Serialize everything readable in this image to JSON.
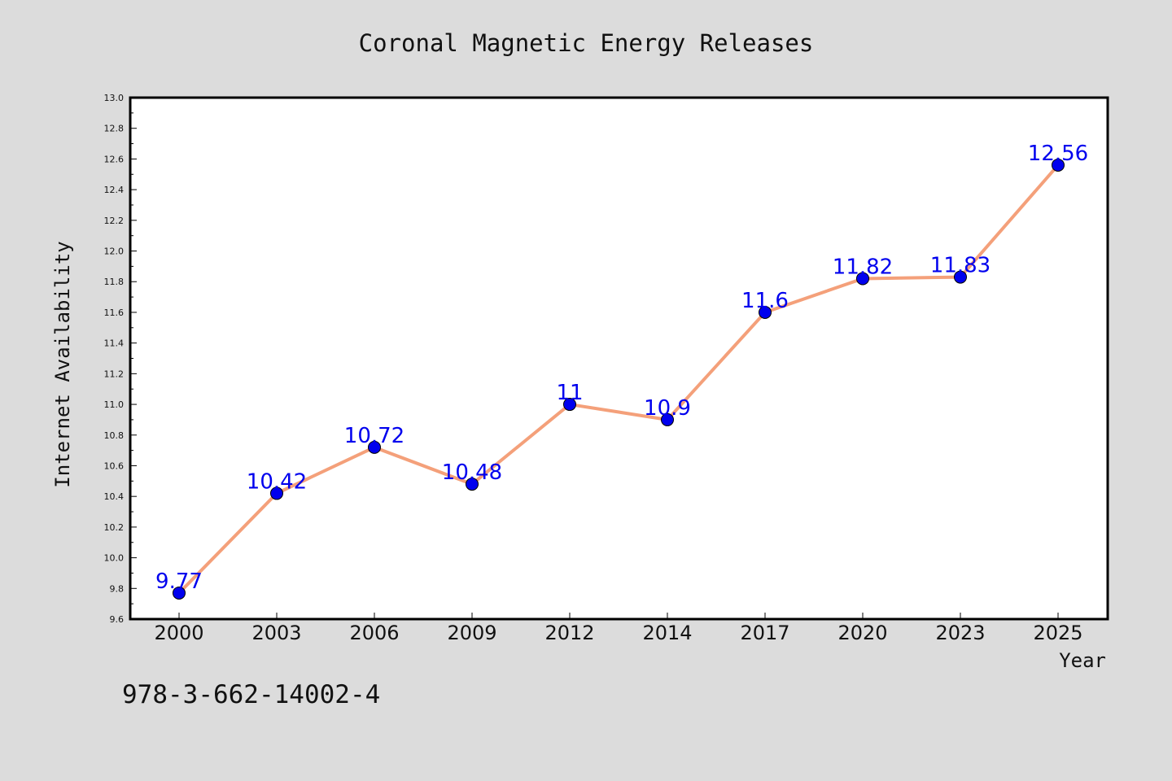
{
  "chart_data": {
    "type": "line",
    "title": "Coronal Magnetic Energy Releases",
    "xlabel": "Year",
    "ylabel": "Internet Availability",
    "categories": [
      "2000",
      "2003",
      "2006",
      "2009",
      "2012",
      "2014",
      "2017",
      "2020",
      "2023",
      "2025"
    ],
    "series": [
      {
        "values": [
          9.77,
          10.42,
          10.72,
          10.48,
          11,
          10.9,
          11.6,
          11.82,
          11.83,
          12.56
        ],
        "labels": [
          "9.77",
          "10.42",
          "10.72",
          "10.48",
          "11",
          "10.9",
          "11.6",
          "11.82",
          "11.83",
          "12.56"
        ]
      }
    ],
    "ylim": [
      9.6,
      13.0
    ],
    "yticks": [
      "9.6",
      "9.8",
      "10.0",
      "10.2",
      "10.4",
      "10.6",
      "10.8",
      "11.0",
      "11.2",
      "11.4",
      "11.6",
      "11.8",
      "12.0",
      "12.2",
      "12.4",
      "12.6",
      "12.8",
      "13.0"
    ],
    "grid": false,
    "legend": "none",
    "colors": {
      "line": "#f4a07a",
      "marker": "#0000ee",
      "data_label": "#0000ee",
      "background": "#dcdcdc",
      "plot_background": "#ffffff"
    }
  },
  "footer_text": "978-3-662-14002-4"
}
